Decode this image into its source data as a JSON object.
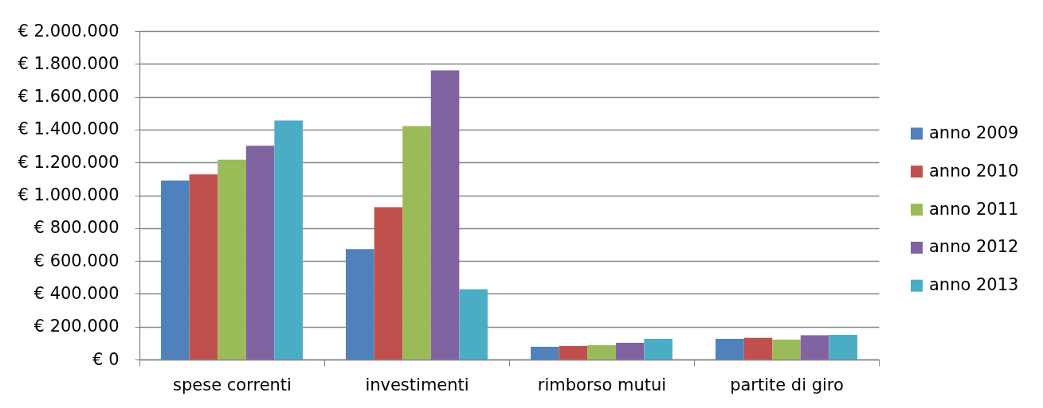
{
  "chart_data": {
    "type": "bar",
    "categories": [
      "spese correnti",
      "investimenti",
      "rimborso mutui",
      "partite di giro"
    ],
    "series": [
      {
        "name": "anno 2009",
        "color": "#4f81bd",
        "values": [
          1090000,
          672000,
          77000,
          126000
        ]
      },
      {
        "name": "anno 2010",
        "color": "#c0504d",
        "values": [
          1127000,
          927000,
          82000,
          132000
        ]
      },
      {
        "name": "anno 2011",
        "color": "#9bbb59",
        "values": [
          1217000,
          1421000,
          87000,
          121000
        ]
      },
      {
        "name": "anno 2012",
        "color": "#8064a2",
        "values": [
          1302000,
          1760000,
          102000,
          148000
        ]
      },
      {
        "name": "anno 2013",
        "color": "#4bacc6",
        "values": [
          1455000,
          427000,
          126000,
          150000
        ]
      }
    ],
    "ylim": [
      0,
      2000000
    ],
    "yticks": [
      {
        "value": 0,
        "label": "€ 0"
      },
      {
        "value": 200000,
        "label": "€ 200.000"
      },
      {
        "value": 400000,
        "label": "€ 400.000"
      },
      {
        "value": 600000,
        "label": "€ 600.000"
      },
      {
        "value": 800000,
        "label": "€ 800.000"
      },
      {
        "value": 1000000,
        "label": "€ 1.000.000"
      },
      {
        "value": 1200000,
        "label": "€ 1.200.000"
      },
      {
        "value": 1400000,
        "label": "€ 1.400.000"
      },
      {
        "value": 1600000,
        "label": "€ 1.600.000"
      },
      {
        "value": 1800000,
        "label": "€ 1.800.000"
      },
      {
        "value": 2000000,
        "label": "€ 2.000.000"
      }
    ],
    "grid": "y",
    "legend": "right"
  }
}
